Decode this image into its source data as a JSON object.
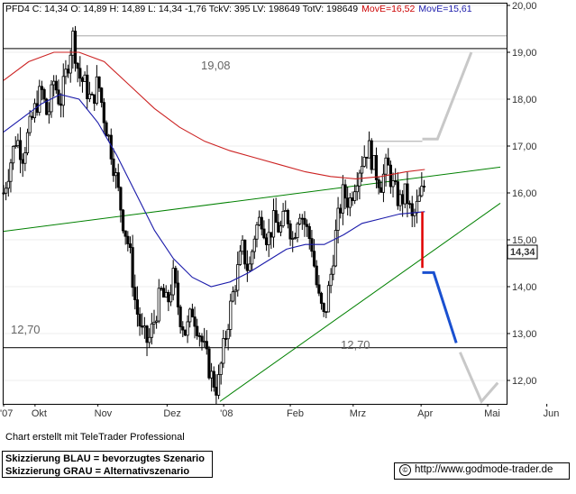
{
  "header": {
    "text": "PFD4 C: 14,34 O: 14,89 H: 14,89 L: 14,34 -1,76 TckV: 395 LV: 198649 TotV: 198649",
    "ma1": "MovE=16,52",
    "ma2": "MovE=15,61",
    "ma1_color": "#cc0000",
    "ma2_color": "#1a1aaa"
  },
  "chart_data": {
    "type": "candlestick",
    "title": "",
    "y_ticks": [
      "12,00",
      "13,00",
      "14,00",
      "15,00",
      "16,00",
      "17,00",
      "18,00",
      "19,00",
      "20,00"
    ],
    "x_ticks": [
      "'07",
      "Okt",
      "Nov",
      "Dez",
      "'08",
      "Feb",
      "Mrz",
      "Apr",
      "Mai",
      "Jun"
    ],
    "last_price_label": "14,34",
    "level_labels": {
      "upper": "19,08",
      "lower_left": "12,70",
      "lower_right": "12,70"
    },
    "horizontal_levels": [
      19.08,
      12.7,
      19.35,
      17.1
    ],
    "price_path": [
      [
        0,
        16.0
      ],
      [
        5,
        16.6
      ],
      [
        10,
        17.2
      ],
      [
        15,
        16.8
      ],
      [
        20,
        17.3
      ],
      [
        25,
        17.8
      ],
      [
        30,
        18.2
      ],
      [
        35,
        17.6
      ],
      [
        40,
        18.4
      ],
      [
        45,
        17.9
      ],
      [
        50,
        18.6
      ],
      [
        55,
        19.35
      ],
      [
        60,
        18.5
      ],
      [
        65,
        18.3
      ],
      [
        70,
        17.9
      ],
      [
        75,
        18.4
      ],
      [
        80,
        17.6
      ],
      [
        85,
        17.0
      ],
      [
        90,
        16.2
      ],
      [
        95,
        15.4
      ],
      [
        100,
        14.8
      ],
      [
        105,
        13.6
      ],
      [
        110,
        13.0
      ],
      [
        115,
        12.8
      ],
      [
        120,
        13.3
      ],
      [
        125,
        13.9
      ],
      [
        130,
        13.6
      ],
      [
        135,
        14.2
      ],
      [
        140,
        13.4
      ],
      [
        145,
        13.0
      ],
      [
        150,
        13.5
      ],
      [
        155,
        13.1
      ],
      [
        160,
        12.6
      ],
      [
        165,
        12.1
      ],
      [
        170,
        11.8
      ],
      [
        175,
        12.7
      ],
      [
        180,
        13.5
      ],
      [
        185,
        14.2
      ],
      [
        190,
        14.8
      ],
      [
        195,
        14.3
      ],
      [
        200,
        15.2
      ],
      [
        205,
        15.5
      ],
      [
        210,
        15.0
      ],
      [
        215,
        15.4
      ],
      [
        220,
        15.2
      ],
      [
        225,
        15.6
      ],
      [
        230,
        15.0
      ],
      [
        235,
        15.7
      ],
      [
        240,
        15.3
      ],
      [
        245,
        14.9
      ],
      [
        250,
        13.8
      ],
      [
        255,
        13.3
      ],
      [
        260,
        14.2
      ],
      [
        265,
        15.3
      ],
      [
        270,
        16.0
      ],
      [
        275,
        15.8
      ],
      [
        280,
        16.3
      ],
      [
        285,
        16.7
      ],
      [
        290,
        17.0
      ],
      [
        295,
        16.5
      ],
      [
        300,
        16.2
      ],
      [
        305,
        16.6
      ],
      [
        310,
        16.1
      ],
      [
        315,
        15.8
      ],
      [
        320,
        16.0
      ],
      [
        325,
        15.4
      ],
      [
        330,
        15.8
      ],
      [
        335,
        16.2
      ]
    ],
    "red_ma": [
      [
        0,
        18.4
      ],
      [
        20,
        18.8
      ],
      [
        40,
        19.0
      ],
      [
        60,
        19.0
      ],
      [
        80,
        18.8
      ],
      [
        100,
        18.3
      ],
      [
        120,
        17.8
      ],
      [
        140,
        17.4
      ],
      [
        160,
        17.1
      ],
      [
        180,
        16.9
      ],
      [
        200,
        16.75
      ],
      [
        220,
        16.6
      ],
      [
        240,
        16.45
      ],
      [
        260,
        16.35
      ],
      [
        280,
        16.3
      ],
      [
        300,
        16.35
      ],
      [
        320,
        16.45
      ],
      [
        335,
        16.5
      ]
    ],
    "blue_ma": [
      [
        0,
        17.3
      ],
      [
        15,
        17.6
      ],
      [
        30,
        17.9
      ],
      [
        45,
        18.1
      ],
      [
        60,
        18.0
      ],
      [
        75,
        17.5
      ],
      [
        90,
        16.8
      ],
      [
        105,
        16.0
      ],
      [
        120,
        15.2
      ],
      [
        135,
        14.6
      ],
      [
        150,
        14.2
      ],
      [
        165,
        14.0
      ],
      [
        180,
        14.1
      ],
      [
        195,
        14.3
      ],
      [
        210,
        14.55
      ],
      [
        225,
        14.8
      ],
      [
        240,
        14.9
      ],
      [
        255,
        14.9
      ],
      [
        270,
        15.1
      ],
      [
        285,
        15.35
      ],
      [
        300,
        15.45
      ],
      [
        315,
        15.55
      ],
      [
        335,
        15.6
      ]
    ],
    "trend_lines": {
      "upper": [
        [
          0,
          15.18
        ],
        [
          395,
          16.55
        ]
      ],
      "lower": [
        [
          172,
          11.55
        ],
        [
          395,
          15.78
        ]
      ]
    },
    "scenario_blue": [
      [
        333,
        14.3
      ],
      [
        342,
        14.3
      ],
      [
        360,
        12.8
      ]
    ],
    "scenario_gray_up": [
      [
        333,
        17.15
      ],
      [
        345,
        17.15
      ],
      [
        372,
        19.0
      ]
    ],
    "scenario_gray_down": [
      [
        363,
        12.6
      ],
      [
        380,
        11.55
      ],
      [
        393,
        11.95
      ]
    ],
    "scenario_red_arrow": [
      [
        333,
        15.6
      ],
      [
        333,
        14.4
      ]
    ],
    "colors": {
      "candles": "#000000",
      "red_ma": "#cc2222",
      "blue_ma": "#1a1aaa",
      "trend": "#008000",
      "scenario_blue": "#1a50d0",
      "scenario_gray": "#c8c8c8",
      "arrow": "#e00000"
    }
  },
  "footer": {
    "credit": "Chart erstellt mit TeleTrader Professional",
    "legend_line1": "Skizzierung BLAU = bevorzugtes Szenario",
    "legend_line2": "Skizzierung GRAU = Alternativszenario",
    "url": "http://www.godmode-trader.de",
    "copyright_symbol": "©"
  }
}
